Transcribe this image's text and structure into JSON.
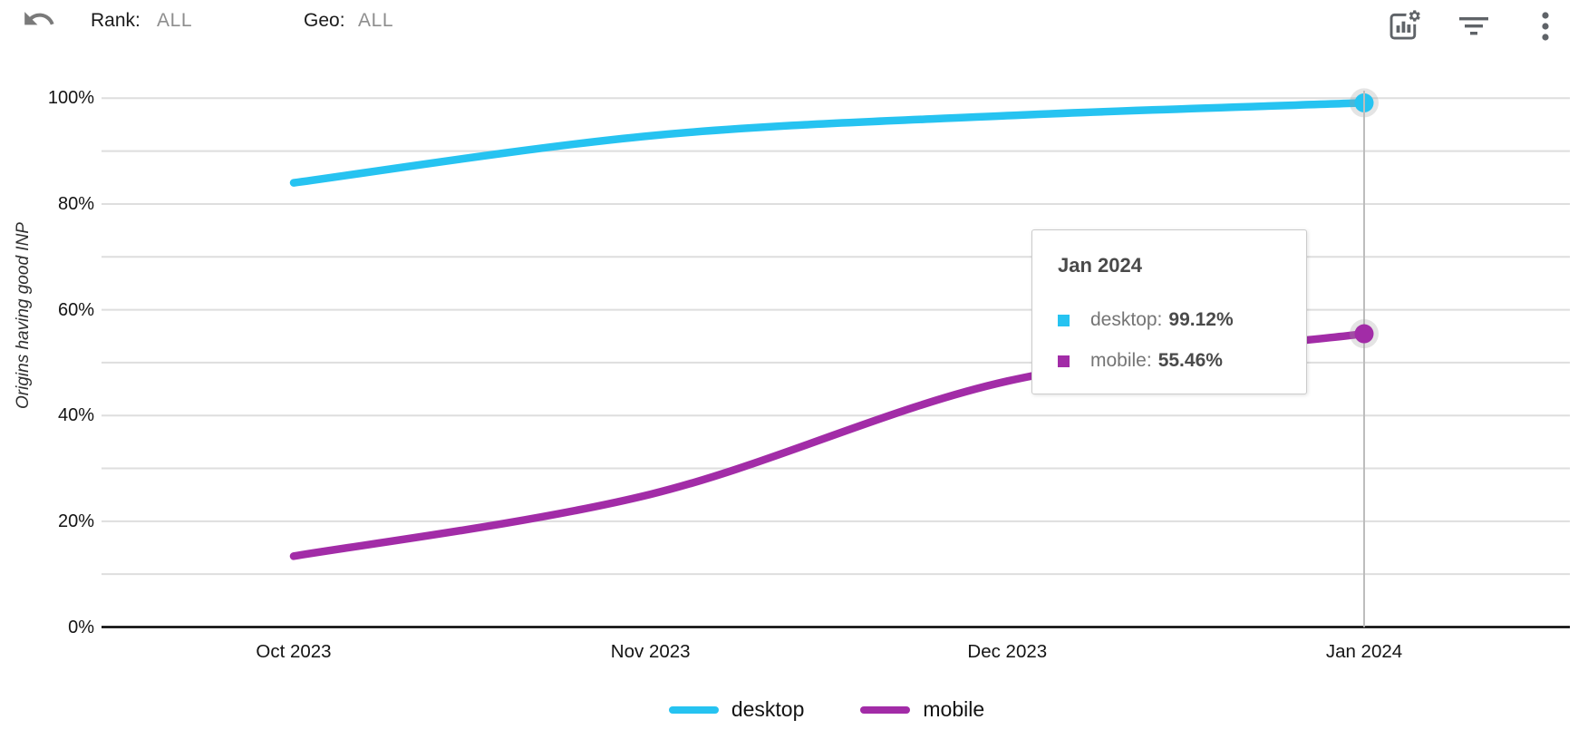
{
  "header": {
    "rank_label": "Rank:",
    "rank_value": "ALL",
    "geo_label": "Geo:",
    "geo_value": "ALL",
    "icons": [
      "undo-icon",
      "chart-settings-icon",
      "filter-icon",
      "kebab-menu-icon"
    ]
  },
  "chart_data": {
    "type": "line",
    "title": "",
    "xlabel": "",
    "ylabel": "Origins having good INP",
    "categories": [
      "Oct 2023",
      "Nov 2023",
      "Dec 2023",
      "Jan 2024"
    ],
    "series": [
      {
        "name": "desktop",
        "color": "#26c3f1",
        "values": [
          84.0,
          92.9,
          96.7,
          99.12
        ]
      },
      {
        "name": "mobile",
        "color": "#a22ca7",
        "values": [
          13.4,
          25.1,
          46.5,
          55.46
        ]
      }
    ],
    "ylim": [
      0,
      100
    ],
    "y_ticks": [
      {
        "label": "100%",
        "value": 100
      },
      {
        "label": "80%",
        "value": 80
      },
      {
        "label": "60%",
        "value": 60
      },
      {
        "label": "40%",
        "value": 40
      },
      {
        "label": "20%",
        "value": 20
      },
      {
        "label": "0%",
        "value": 0
      }
    ],
    "minor_grid_step": 10,
    "grid": true,
    "legend_position": "bottom",
    "highlighted_x": "Jan 2024",
    "grid_color": "#dedede",
    "axis_color": "#000000",
    "crosshair_color": "#bdbdbd"
  },
  "tooltip": {
    "title": "Jan 2024",
    "rows": [
      {
        "series": "desktop",
        "label": "desktop:",
        "value": "99.12%"
      },
      {
        "series": "mobile",
        "label": "mobile:",
        "value": "55.46%"
      }
    ]
  }
}
